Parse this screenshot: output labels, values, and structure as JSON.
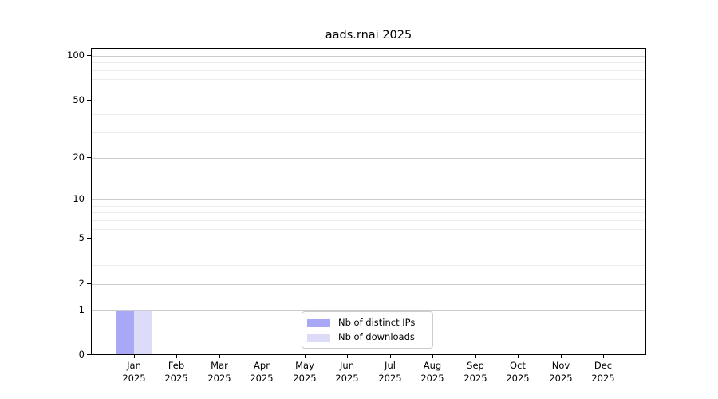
{
  "title": "aads.rnai 2025",
  "colors": {
    "bar_distinct_ips": "#a8a8f7",
    "bar_downloads": "#dcdcf9",
    "grid_major": "#cccccc",
    "grid_minor": "#ececec",
    "axis": "#000000",
    "legend_border": "#cccccc",
    "background": "#ffffff"
  },
  "legend": {
    "items": [
      {
        "label": "Nb of distinct IPs",
        "color_key": "bar_distinct_ips"
      },
      {
        "label": "Nb of downloads",
        "color_key": "bar_downloads"
      }
    ]
  },
  "chart_data": {
    "type": "bar",
    "title": "aads.rnai 2025",
    "categories": [
      "Jan",
      "Feb",
      "Mar",
      "Apr",
      "May",
      "Jun",
      "Jul",
      "Aug",
      "Sep",
      "Oct",
      "Nov",
      "Dec"
    ],
    "category_year": "2025",
    "series": [
      {
        "name": "Nb of distinct IPs",
        "values": [
          1,
          0,
          0,
          0,
          0,
          0,
          0,
          0,
          0,
          0,
          0,
          0
        ]
      },
      {
        "name": "Nb of downloads",
        "values": [
          1,
          0,
          0,
          0,
          0,
          0,
          0,
          0,
          0,
          0,
          0,
          0
        ]
      }
    ],
    "yscale": "log1p",
    "ylim": [
      0,
      100
    ],
    "yticks": [
      0,
      1,
      2,
      5,
      10,
      20,
      50,
      100
    ],
    "yticks_minor": [
      3,
      4,
      6,
      7,
      8,
      9,
      30,
      40,
      60,
      70,
      80,
      90
    ],
    "grid": "horizontal",
    "legend_position": "bottom-center",
    "xlabel": "",
    "ylabel": ""
  }
}
